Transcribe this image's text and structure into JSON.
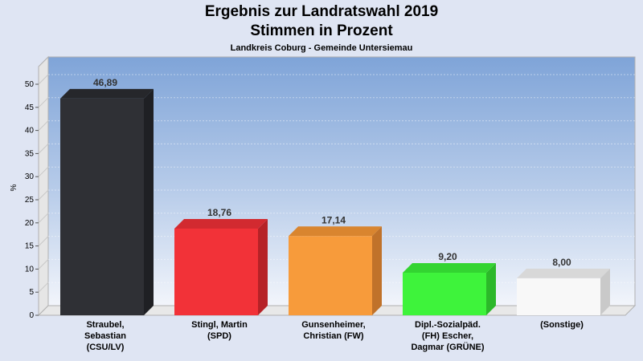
{
  "chart_data": {
    "type": "bar",
    "title": "Ergebnis zur Landratswahl 2019",
    "title_line2": "Stimmen in Prozent",
    "subtitle": "Landkreis Coburg - Gemeinde Untersiemau",
    "ylabel": "%",
    "xlabel": "",
    "ylim": [
      0,
      50
    ],
    "yticks": [
      0,
      5,
      10,
      15,
      20,
      25,
      30,
      35,
      40,
      45,
      50
    ],
    "grid": true,
    "categories": [
      [
        "Straubel,",
        "Sebastian",
        "(CSU/LV)"
      ],
      [
        "Stingl, Martin",
        "(SPD)"
      ],
      [
        "Gunsenheimer,",
        "Christian (FW)"
      ],
      [
        "Dipl.-Sozialpäd.",
        "(FH) Escher,",
        "Dagmar (GRÜNE)"
      ],
      [
        "(Sonstige)"
      ]
    ],
    "values": [
      46.89,
      18.76,
      17.14,
      9.2,
      8.0
    ],
    "value_labels": [
      "46,89",
      "18,76",
      "17,14",
      "9,20",
      "8,00"
    ],
    "colors": [
      "#2f3035",
      "#f23238",
      "#f79b3b",
      "#3ef33b",
      "#f8f8f8"
    ],
    "side_colors": [
      "#1f2024",
      "#b62227",
      "#c0722a",
      "#2cb82a",
      "#c9c9c9"
    ],
    "top_colors": [
      "#26272b",
      "#d22a30",
      "#d9852f",
      "#33d431",
      "#d8d8d8"
    ]
  }
}
